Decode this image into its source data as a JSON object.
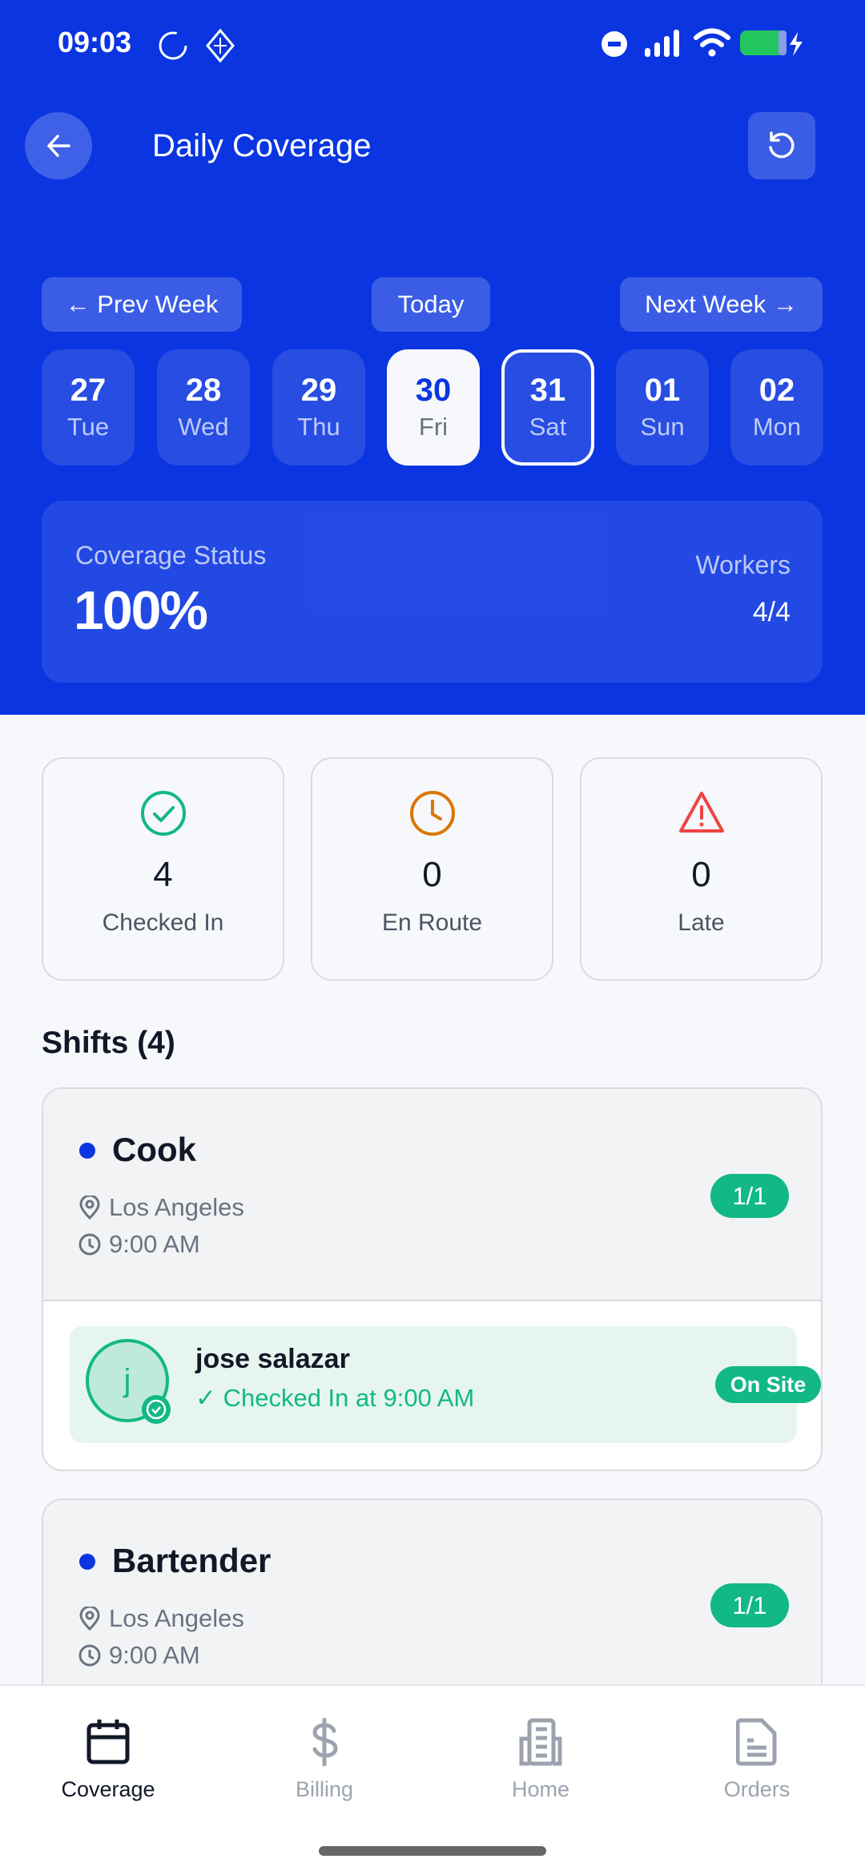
{
  "status_bar": {
    "time": "09:03"
  },
  "header": {
    "title": "Daily Coverage"
  },
  "week_nav": {
    "prev": "← Prev Week",
    "today": "Today",
    "next": "Next Week →"
  },
  "days": [
    {
      "num": "27",
      "dow": "Tue",
      "state": "default"
    },
    {
      "num": "28",
      "dow": "Wed",
      "state": "default"
    },
    {
      "num": "29",
      "dow": "Thu",
      "state": "default"
    },
    {
      "num": "30",
      "dow": "Fri",
      "state": "selected"
    },
    {
      "num": "31",
      "dow": "Sat",
      "state": "outlined"
    },
    {
      "num": "01",
      "dow": "Sun",
      "state": "default"
    },
    {
      "num": "02",
      "dow": "Mon",
      "state": "default"
    }
  ],
  "coverage": {
    "label": "Coverage Status",
    "value": "100%",
    "workers_label": "Workers",
    "workers_value": "4/4"
  },
  "stats": [
    {
      "icon": "check-circle-icon",
      "value": "4",
      "label": "Checked In",
      "color": "#12b886"
    },
    {
      "icon": "clock-icon",
      "value": "0",
      "label": "En Route",
      "color": "#d97706"
    },
    {
      "icon": "warning-icon",
      "value": "0",
      "label": "Late",
      "color": "#ef4444"
    }
  ],
  "shifts": {
    "title": "Shifts (4)",
    "items": [
      {
        "role": "Cook",
        "location": "Los Angeles",
        "time": "9:00 AM",
        "filled": "1/1",
        "worker": {
          "initial": "j",
          "name": "jose salazar",
          "status_text": "✓ Checked In at 9:00 AM",
          "badge": "On Site"
        }
      },
      {
        "role": "Bartender",
        "location": "Los Angeles",
        "time": "9:00 AM",
        "filled": "1/1"
      }
    ]
  },
  "bottom_nav": [
    {
      "label": "Coverage",
      "active": true
    },
    {
      "label": "Billing"
    },
    {
      "label": "Home"
    },
    {
      "label": "Orders"
    }
  ],
  "colors": {
    "brand": "#0a35e0",
    "success": "#12b886"
  }
}
